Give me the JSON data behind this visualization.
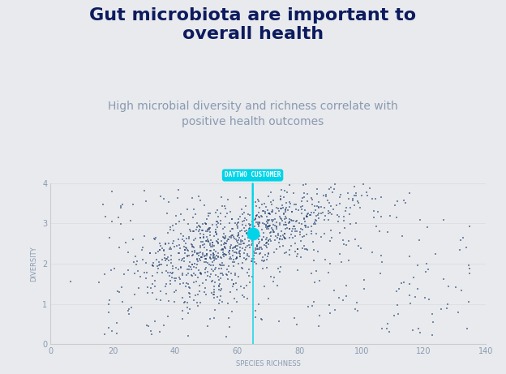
{
  "title": "Gut microbiota are important to\noverall health",
  "subtitle": "High microbial diversity and richness correlate with\npositive health outcomes",
  "xlabel": "SPECIES RICHNESS",
  "ylabel": "DIVERSITY",
  "bg_color": "#e8eaed",
  "plot_bg_color": "#e8eaed",
  "title_color": "#0d1b5e",
  "subtitle_color": "#8a9ab0",
  "axis_color": "#8a9ab0",
  "dot_color": "#1a3a6b",
  "highlight_color": "#00d4e8",
  "highlight_x": 65,
  "highlight_y": 2.75,
  "annotation_text": "DAYTWO CUSTOMER",
  "xlim": [
    0,
    140
  ],
  "ylim": [
    0,
    4
  ],
  "xticks": [
    0,
    20,
    40,
    60,
    80,
    100,
    120,
    140
  ],
  "yticks": [
    0,
    1,
    2,
    3,
    4
  ],
  "seed": 42,
  "n_points": 1200
}
